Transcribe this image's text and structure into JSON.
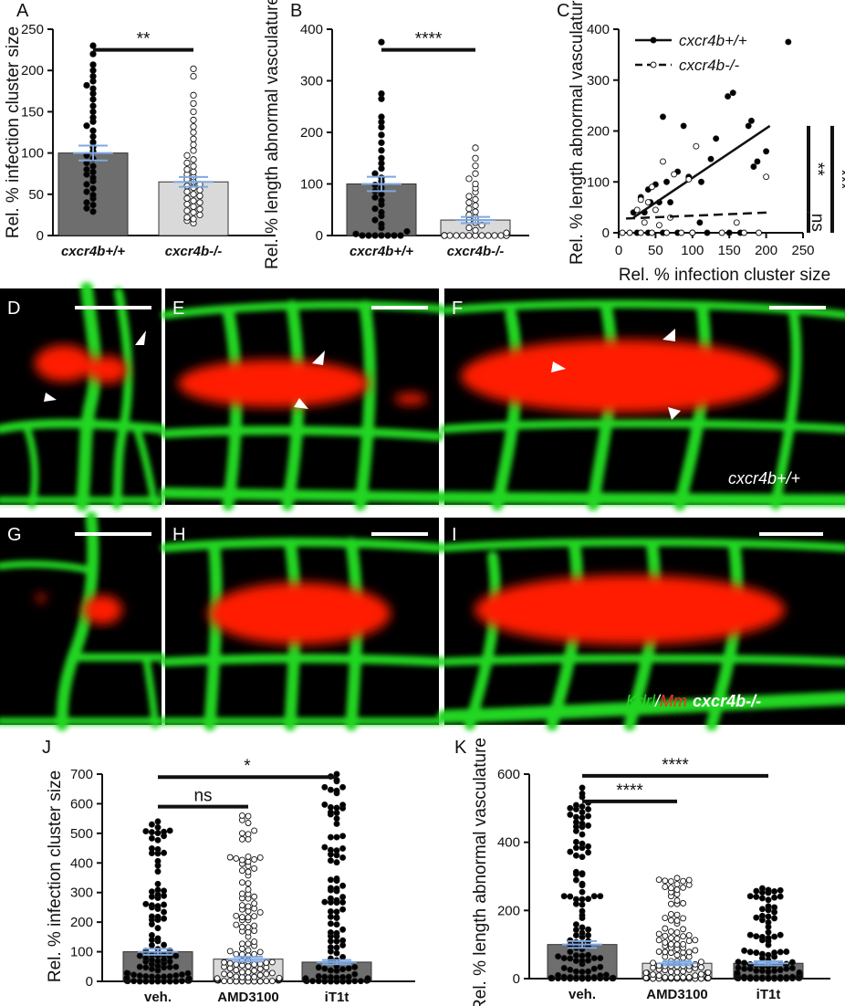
{
  "charts": [
    {
      "id": "A",
      "type": "bar",
      "ylabel": "Rel. % infection cluster size",
      "ylim": [
        0,
        250
      ],
      "yticks": [
        0,
        50,
        100,
        150,
        200,
        250
      ],
      "categories": [
        "cxcr4b+/+",
        "cxcr4b-/-"
      ],
      "values": [
        100,
        65
      ],
      "sem": [
        9,
        6
      ],
      "bar_colors": [
        "#6e6e6e",
        "#d9d9d9"
      ],
      "points": [
        [
          230,
          220,
          207,
          200,
          193,
          187,
          182,
          178,
          172,
          165,
          157,
          150,
          143,
          138,
          133,
          127,
          120,
          113,
          107,
          102,
          97,
          93,
          88,
          84,
          80,
          77,
          74,
          70,
          66,
          62,
          57,
          53,
          49,
          45,
          40,
          37,
          33,
          29
        ],
        [
          202,
          193,
          170,
          160,
          150,
          140,
          132,
          125,
          117,
          110,
          103,
          97,
          92,
          88,
          84,
          80,
          77,
          74,
          71,
          68,
          65,
          62,
          60,
          58,
          55,
          53,
          50,
          48,
          45,
          42,
          40,
          38,
          35,
          32,
          30,
          28,
          25,
          22,
          20,
          18,
          15
        ]
      ],
      "point_fill": [
        "#000000",
        "#ffffff"
      ],
      "sig": [
        {
          "from": 0,
          "to": 1,
          "label": "**",
          "y": 225
        }
      ]
    },
    {
      "id": "B",
      "type": "bar",
      "ylabel": "Rel. % length abnormal vasculature",
      "ylim": [
        0,
        400
      ],
      "yticks": [
        0,
        100,
        200,
        300,
        400
      ],
      "categories": [
        "cxcr4b+/+",
        "cxcr4b-/-"
      ],
      "values": [
        100,
        30
      ],
      "sem": [
        14,
        6
      ],
      "bar_colors": [
        "#6e6e6e",
        "#d9d9d9"
      ],
      "points": [
        [
          375,
          275,
          265,
          230,
          220,
          210,
          195,
          180,
          165,
          150,
          140,
          130,
          120,
          112,
          105,
          98,
          92,
          86,
          80,
          74,
          68,
          60,
          52,
          45,
          38,
          30,
          22,
          15,
          8,
          3,
          0,
          0,
          0,
          0,
          0,
          0,
          0
        ],
        [
          170,
          150,
          135,
          120,
          110,
          100,
          92,
          84,
          76,
          70,
          64,
          58,
          52,
          46,
          40,
          35,
          30,
          25,
          20,
          15,
          10,
          5,
          0,
          0,
          0,
          0,
          0,
          0,
          0,
          0,
          0,
          0,
          0,
          0,
          0,
          0,
          0,
          0,
          0,
          0
        ]
      ],
      "point_fill": [
        "#000000",
        "#ffffff"
      ],
      "sig": [
        {
          "from": 0,
          "to": 1,
          "label": "****",
          "y": 360
        }
      ]
    },
    {
      "id": "C",
      "type": "scatter",
      "xlabel": "Rel. % infection cluster size",
      "ylabel": "Rel. % length abnormal vasculature",
      "xlim": [
        0,
        250
      ],
      "ylim": [
        0,
        400
      ],
      "xticks": [
        0,
        50,
        100,
        150,
        200,
        250
      ],
      "yticks": [
        0,
        100,
        200,
        300,
        400
      ],
      "series": [
        {
          "name": "cxcr4b+/+",
          "fill": "#000000",
          "points": [
            [
              230,
              375
            ],
            [
              155,
              275
            ],
            [
              148,
              268
            ],
            [
              60,
              228
            ],
            [
              180,
              220
            ],
            [
              176,
              210
            ],
            [
              88,
              210
            ],
            [
              132,
              185
            ],
            [
              200,
              160
            ],
            [
              188,
              140
            ],
            [
              125,
              145
            ],
            [
              183,
              130
            ],
            [
              80,
              120
            ],
            [
              95,
              110
            ],
            [
              112,
              100
            ],
            [
              65,
              100
            ],
            [
              50,
              95
            ],
            [
              40,
              85
            ],
            [
              30,
              70
            ],
            [
              43,
              60
            ],
            [
              55,
              60
            ],
            [
              70,
              60
            ],
            [
              20,
              40
            ],
            [
              35,
              40
            ],
            [
              110,
              20
            ],
            [
              150,
              0
            ],
            [
              165,
              0
            ],
            [
              40,
              0
            ],
            [
              25,
              0
            ],
            [
              60,
              0
            ],
            [
              80,
              0
            ],
            [
              100,
              0
            ],
            [
              120,
              0
            ]
          ],
          "fit": [
            [
              20,
              30
            ],
            [
              205,
              210
            ]
          ]
        },
        {
          "name": "cxcr4b-/-",
          "fill": "#ffffff",
          "points": [
            [
              105,
              170
            ],
            [
              60,
              140
            ],
            [
              75,
              115
            ],
            [
              200,
              110
            ],
            [
              95,
              105
            ],
            [
              45,
              90
            ],
            [
              30,
              65
            ],
            [
              40,
              60
            ],
            [
              25,
              45
            ],
            [
              50,
              45
            ],
            [
              70,
              30
            ],
            [
              35,
              20
            ],
            [
              55,
              15
            ],
            [
              160,
              20
            ],
            [
              100,
              0
            ],
            [
              5,
              0
            ],
            [
              15,
              0
            ],
            [
              30,
              0
            ],
            [
              45,
              0
            ],
            [
              65,
              0
            ],
            [
              85,
              0
            ],
            [
              140,
              0
            ],
            [
              170,
              0
            ],
            [
              190,
              0
            ]
          ],
          "fit": [
            [
              10,
              28
            ],
            [
              205,
              40
            ]
          ]
        }
      ],
      "sig": [
        {
          "label": "ns",
          "y0": 0,
          "y1": 40
        },
        {
          "label": "**",
          "y0": 40,
          "y1": 210
        },
        {
          "label": "***",
          "y0": 0,
          "y1": 210
        }
      ]
    },
    {
      "id": "J",
      "type": "bar",
      "ylabel": "Rel. % infection cluster size",
      "ylim": [
        0,
        700
      ],
      "yticks": [
        0,
        100,
        200,
        300,
        400,
        500,
        600,
        700
      ],
      "categories": [
        "veh.",
        "AMD3100",
        "iT1t"
      ],
      "values": [
        100,
        75,
        65
      ],
      "sem": [
        10,
        8,
        7
      ],
      "bar_colors": [
        "#6e6e6e",
        "#d9d9d9",
        "#6e6e6e"
      ],
      "point_fill": [
        "#000000",
        "#ffffff",
        "#000000"
      ],
      "point_counts": [
        110,
        110,
        110
      ],
      "point_max": [
        540,
        560,
        700
      ],
      "sig": [
        {
          "from": 0,
          "to": 1,
          "label": "ns",
          "y": 590
        },
        {
          "from": 0,
          "to": 2,
          "label": "*",
          "y": 690
        }
      ]
    },
    {
      "id": "K",
      "type": "bar",
      "ylabel": "Rel. % length abnormal vasculature",
      "ylim": [
        0,
        600
      ],
      "yticks": [
        0,
        200,
        400,
        600
      ],
      "categories": [
        "veh.",
        "AMD3100",
        "iT1t"
      ],
      "values": [
        100,
        45,
        45
      ],
      "sem": [
        10,
        6,
        6
      ],
      "bar_colors": [
        "#6e6e6e",
        "#d9d9d9",
        "#6e6e6e"
      ],
      "point_fill": [
        "#000000",
        "#ffffff",
        "#000000"
      ],
      "point_counts": [
        110,
        110,
        110
      ],
      "point_max": [
        560,
        295,
        265
      ],
      "sig": [
        {
          "from": 0,
          "to": 1,
          "label": "****",
          "y": 520
        },
        {
          "from": 0,
          "to": 2,
          "label": "****",
          "y": 595
        }
      ]
    }
  ],
  "micro_labels": [
    "D",
    "E",
    "F",
    "G",
    "H",
    "I"
  ],
  "overlay_genotype_top": "cxcr4b+/+",
  "overlay_kdrl": "Kdrl",
  "overlay_slash": "/",
  "overlay_mm": "Mm",
  "overlay_genotype_bottom": "cxcr4b-/-",
  "colors": {
    "vessel": "#22d622",
    "bacteria": "#ff1a00",
    "background": "#000000"
  }
}
